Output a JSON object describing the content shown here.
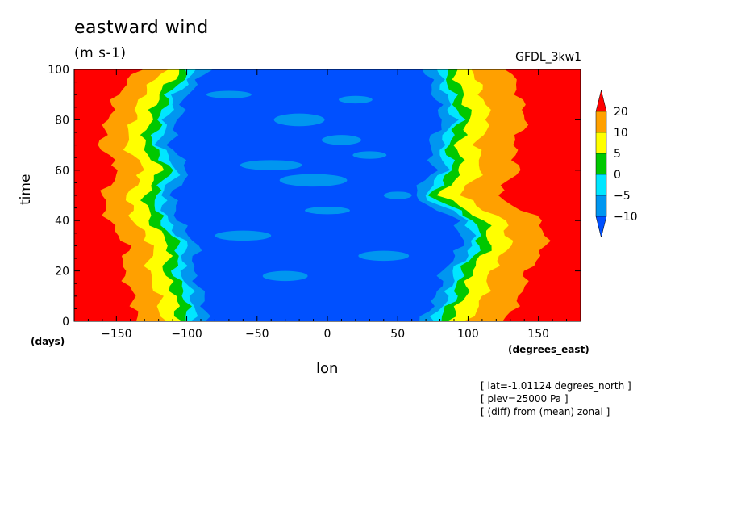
{
  "chart_data": {
    "type": "heatmap",
    "title": "eastward wind",
    "units": "(m s-1)",
    "dataset": "GFDL_3kw1",
    "xlabel": "lon",
    "ylabel": "time",
    "x_unit_label": "(degrees_east)",
    "y_unit_label": "(days)",
    "xlim": [
      -180,
      180
    ],
    "ylim": [
      0,
      100
    ],
    "x_ticks": [
      -150,
      -100,
      -50,
      0,
      50,
      100,
      150
    ],
    "y_ticks": [
      0,
      20,
      40,
      60,
      80,
      100
    ],
    "colorbar": {
      "levels": [
        -10,
        -5,
        0,
        5,
        10,
        20
      ],
      "labels": [
        "20",
        "10",
        "5",
        "0",
        "-5",
        "-10"
      ],
      "colors": [
        "#0050ff",
        "#0096f0",
        "#00e6ff",
        "#00c800",
        "#ffff00",
        "#ffa000",
        "#ff0000"
      ]
    },
    "notes": [
      "[ lat=-1.01124 degrees_north ]",
      "[ plev=25000 Pa ]",
      "[ (diff) from (mean) zonal ]"
    ],
    "west_band": [
      {
        "time": 0,
        "edge": -86
      },
      {
        "time": 10,
        "edge": -88
      },
      {
        "time": 20,
        "edge": -96
      },
      {
        "time": 30,
        "edge": -92
      },
      {
        "time": 40,
        "edge": -106
      },
      {
        "time": 50,
        "edge": -110
      },
      {
        "time": 60,
        "edge": -98
      },
      {
        "time": 70,
        "edge": -112
      },
      {
        "time": 80,
        "edge": -106
      },
      {
        "time": 90,
        "edge": -100
      },
      {
        "time": 100,
        "edge": -84
      }
    ],
    "east_band": [
      {
        "time": 0,
        "edge": 66
      },
      {
        "time": 10,
        "edge": 78
      },
      {
        "time": 20,
        "edge": 82
      },
      {
        "time": 30,
        "edge": 96
      },
      {
        "time": 40,
        "edge": 92
      },
      {
        "time": 50,
        "edge": 60
      },
      {
        "time": 60,
        "edge": 76
      },
      {
        "time": 70,
        "edge": 72
      },
      {
        "time": 80,
        "edge": 82
      },
      {
        "time": 90,
        "edge": 76
      },
      {
        "time": 100,
        "edge": 70
      }
    ]
  }
}
